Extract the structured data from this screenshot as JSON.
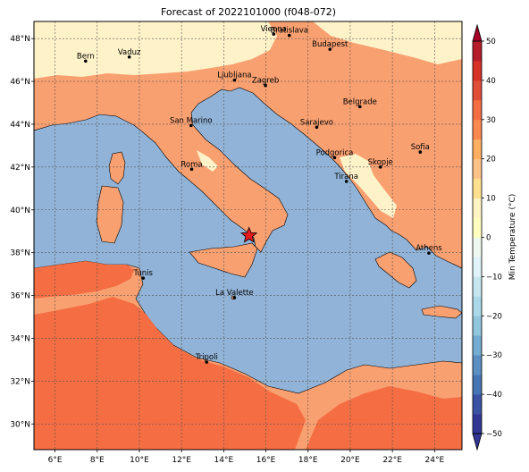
{
  "title": "Forecast of 2022101000 (f048-072)",
  "map": {
    "lon_range": [
      5.0,
      25.3
    ],
    "lat_range": [
      28.8,
      48.8
    ],
    "x_ticks": [
      {
        "lon": 6,
        "label": "6°E"
      },
      {
        "lon": 8,
        "label": "8°E"
      },
      {
        "lon": 10,
        "label": "10°E"
      },
      {
        "lon": 12,
        "label": "12°E"
      },
      {
        "lon": 14,
        "label": "14°E"
      },
      {
        "lon": 16,
        "label": "16°E"
      },
      {
        "lon": 18,
        "label": "18°E"
      },
      {
        "lon": 20,
        "label": "20°E"
      },
      {
        "lon": 22,
        "label": "22°E"
      },
      {
        "lon": 24,
        "label": "24°E"
      }
    ],
    "y_ticks": [
      {
        "lat": 30,
        "label": "30°N"
      },
      {
        "lat": 32,
        "label": "32°N"
      },
      {
        "lat": 34,
        "label": "34°N"
      },
      {
        "lat": 36,
        "label": "36°N"
      },
      {
        "lat": 38,
        "label": "38°N"
      },
      {
        "lat": 40,
        "label": "40°N"
      },
      {
        "lat": 42,
        "label": "42°N"
      },
      {
        "lat": 44,
        "label": "44°N"
      },
      {
        "lat": 46,
        "label": "46°N"
      },
      {
        "lat": 48,
        "label": "48°N"
      }
    ],
    "grid": true,
    "marker": {
      "lon": 15.2,
      "lat": 38.8,
      "symbol": "star",
      "color": "#e41a1c"
    }
  },
  "cities": [
    {
      "name": "Bern",
      "lon": 7.45,
      "lat": 46.95
    },
    {
      "name": "Vaduz",
      "lon": 9.52,
      "lat": 47.14
    },
    {
      "name": "Vienna",
      "lon": 16.37,
      "lat": 48.21
    },
    {
      "name": "Bratislava",
      "lon": 17.11,
      "lat": 48.15
    },
    {
      "name": "Budapest",
      "lon": 19.04,
      "lat": 47.5
    },
    {
      "name": "Ljubljana",
      "lon": 14.51,
      "lat": 46.06
    },
    {
      "name": "Zagreb",
      "lon": 15.98,
      "lat": 45.81
    },
    {
      "name": "Belgrade",
      "lon": 20.46,
      "lat": 44.82
    },
    {
      "name": "San Marino",
      "lon": 12.45,
      "lat": 43.94
    },
    {
      "name": "Sarajevo",
      "lon": 18.41,
      "lat": 43.86
    },
    {
      "name": "Sofia",
      "lon": 23.32,
      "lat": 42.7
    },
    {
      "name": "Podgorica",
      "lon": 19.26,
      "lat": 42.44
    },
    {
      "name": "Skopje",
      "lon": 21.43,
      "lat": 42.0
    },
    {
      "name": "Roma",
      "lon": 12.48,
      "lat": 41.9
    },
    {
      "name": "Tirana",
      "lon": 19.82,
      "lat": 41.33
    },
    {
      "name": "Athens",
      "lon": 23.73,
      "lat": 37.98
    },
    {
      "name": "Tunis",
      "lon": 10.18,
      "lat": 36.81
    },
    {
      "name": "La Valette",
      "lon": 14.51,
      "lat": 35.9
    },
    {
      "name": "Tripoli",
      "lon": 13.19,
      "lat": 32.89
    }
  ],
  "colorbar": {
    "label": "Min Temperature (°C)",
    "min": -50,
    "max": 50,
    "levels": [
      -50,
      -45,
      -40,
      -35,
      -30,
      -25,
      -20,
      -15,
      -10,
      -5,
      0,
      5,
      10,
      15,
      20,
      25,
      30,
      35,
      40,
      45,
      50
    ],
    "colors": [
      "#313695",
      "#3a52a4",
      "#4575b4",
      "#5b8fc3",
      "#74add1",
      "#92c5de",
      "#abd9e9",
      "#c6e6f0",
      "#e0f3f8",
      "#eff8f0",
      "#ffffbf",
      "#fff3c4",
      "#fee090",
      "#fdc287",
      "#fdae61",
      "#f9894f",
      "#f46d43",
      "#e04e37",
      "#d73027",
      "#b51d2a",
      "#a50026"
    ],
    "ticks": [
      {
        "value": 50,
        "label": "50"
      },
      {
        "value": 40,
        "label": "40"
      },
      {
        "value": 30,
        "label": "30"
      },
      {
        "value": 20,
        "label": "20"
      },
      {
        "value": 10,
        "label": "10"
      },
      {
        "value": 0,
        "label": "0"
      },
      {
        "value": -10,
        "label": "−10"
      },
      {
        "value": -20,
        "label": "−20"
      },
      {
        "value": -30,
        "label": "−30"
      },
      {
        "value": -40,
        "label": "−40"
      },
      {
        "value": -50,
        "label": "−50"
      }
    ]
  },
  "palette": {
    "sea": "#91b3d7",
    "warm_land": "#f9a071",
    "hot_land": "#f46d43",
    "cool_land": "#fdf2c8",
    "border": "#000000",
    "grid": "#555555"
  }
}
